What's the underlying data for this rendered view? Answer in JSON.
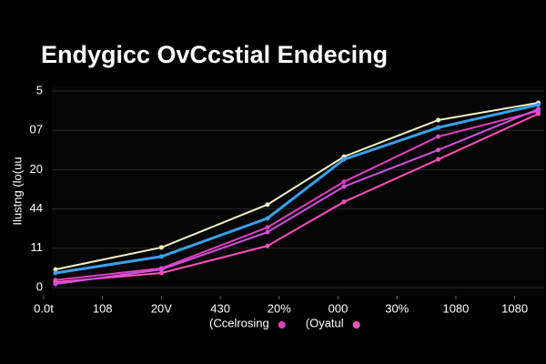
{
  "chart_data": {
    "type": "line",
    "title": "Endygicc OvCcstial Endecing",
    "y_label": "Ilustng (lo(uu",
    "x": [
      0.2,
      2,
      3.8,
      5.1,
      6.7,
      8.4
    ],
    "xlim": [
      0,
      8.5
    ],
    "xticks": [
      {
        "value": 0,
        "label": "0.0t"
      },
      {
        "value": 1,
        "label": "108"
      },
      {
        "value": 2,
        "label": "20V"
      },
      {
        "value": 3,
        "label": "430"
      },
      {
        "value": 4,
        "label": "20%"
      },
      {
        "value": 5,
        "label": "000"
      },
      {
        "value": 6,
        "label": "30%"
      },
      {
        "value": 7,
        "label": "1080"
      },
      {
        "value": 8,
        "label": "1080"
      }
    ],
    "ylim": [
      0,
      5
    ],
    "yticks": [
      {
        "value": 0,
        "label": "0"
      },
      {
        "value": 1,
        "label": "11"
      },
      {
        "value": 2,
        "label": "44"
      },
      {
        "value": 3,
        "label": "20"
      },
      {
        "value": 4,
        "label": "07"
      },
      5
    ],
    "grid": true,
    "series": [
      {
        "color": "#f2f0c8",
        "values": [
          0.46,
          1.02,
          2.11,
          3.33,
          4.26,
          4.7
        ]
      },
      {
        "color": "#3aa0e8",
        "values": [
          0.37,
          0.79,
          1.76,
          3.26,
          4.07,
          4.65
        ]
      },
      {
        "name": "(Ccelrosing",
        "color": "#e040c0",
        "values": [
          0.19,
          0.49,
          1.53,
          2.69,
          3.84,
          4.49
        ]
      },
      {
        "name": "(Oyatul",
        "color": "#ff4fb8",
        "values": [
          0.14,
          0.37,
          1.06,
          2.18,
          3.26,
          4.42
        ]
      },
      {
        "color": "#d050e0",
        "values": [
          0.09,
          0.46,
          1.41,
          2.57,
          3.5,
          4.54
        ]
      }
    ]
  }
}
